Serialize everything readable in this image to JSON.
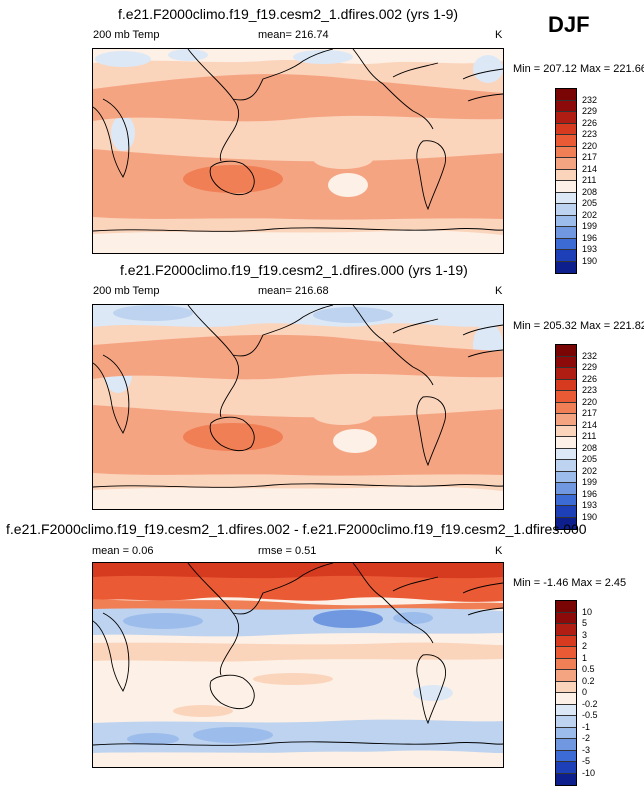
{
  "season": "DJF",
  "chart_data": [
    {
      "type": "heatmap",
      "title": "f.e21.F2000climo.f19_f19.cesm2_1.dfires.002 (yrs 1-9)",
      "left_label": "200 mb Temp",
      "mean_label": "mean= 216.74",
      "units": "K",
      "minmax": "Min = 207.12 Max = 221.66",
      "levels": [
        "232",
        "229",
        "226",
        "223",
        "220",
        "217",
        "214",
        "211",
        "208",
        "205",
        "202",
        "199",
        "196",
        "193",
        "190"
      ],
      "level_colors": [
        "#8c0a0a",
        "#b01d12",
        "#d63a1f",
        "#ea5a35",
        "#f07f55",
        "#f5a482",
        "#fbd4bc",
        "#fdf0e6",
        "#dde8f6",
        "#bdd3ef",
        "#9cbcec",
        "#6f98e0",
        "#3d6bd6",
        "#1d3fb8",
        "#0c1f8c"
      ],
      "extrema": {
        "min": 207.12,
        "max": 221.66,
        "mean": 216.74
      }
    },
    {
      "type": "heatmap",
      "title": "f.e21.F2000climo.f19_f19.cesm2_1.dfires.000 (yrs 1-19)",
      "left_label": "200 mb Temp",
      "mean_label": "mean= 216.68",
      "units": "K",
      "minmax": "Min = 205.32 Max = 221.82",
      "levels": [
        "232",
        "229",
        "226",
        "223",
        "220",
        "217",
        "214",
        "211",
        "208",
        "205",
        "202",
        "199",
        "196",
        "193",
        "190"
      ],
      "level_colors": [
        "#8c0a0a",
        "#b01d12",
        "#d63a1f",
        "#ea5a35",
        "#f07f55",
        "#f5a482",
        "#fbd4bc",
        "#fdf0e6",
        "#dde8f6",
        "#bdd3ef",
        "#9cbcec",
        "#6f98e0",
        "#3d6bd6",
        "#1d3fb8",
        "#0c1f8c"
      ],
      "extrema": {
        "min": 205.32,
        "max": 221.82,
        "mean": 216.68
      }
    },
    {
      "type": "heatmap",
      "title": "f.e21.F2000climo.f19_f19.cesm2_1.dfires.002 - f.e21.F2000climo.f19_f19.cesm2_1.dfires.000",
      "mean_label": "mean =   0.06",
      "rmse_label": "rmse =   0.51",
      "units": "K",
      "minmax": "Min =  -1.46 Max =   2.45",
      "levels": [
        "10",
        "5",
        "3",
        "2",
        "1",
        "0.5",
        "0.2",
        "0",
        "-0.2",
        "-0.5",
        "-1",
        "-2",
        "-3",
        "-5",
        "-10"
      ],
      "level_colors": [
        "#8c0a0a",
        "#b01d12",
        "#d63a1f",
        "#ea5a35",
        "#f07f55",
        "#f5a482",
        "#fbd4bc",
        "#fdf0e6",
        "#dde8f6",
        "#bdd3ef",
        "#9cbcec",
        "#6f98e0",
        "#3d6bd6",
        "#1d3fb8",
        "#0c1f8c"
      ],
      "extrema": {
        "min": -1.46,
        "max": 2.45,
        "mean": 0.06,
        "rmse": 0.51
      }
    }
  ]
}
